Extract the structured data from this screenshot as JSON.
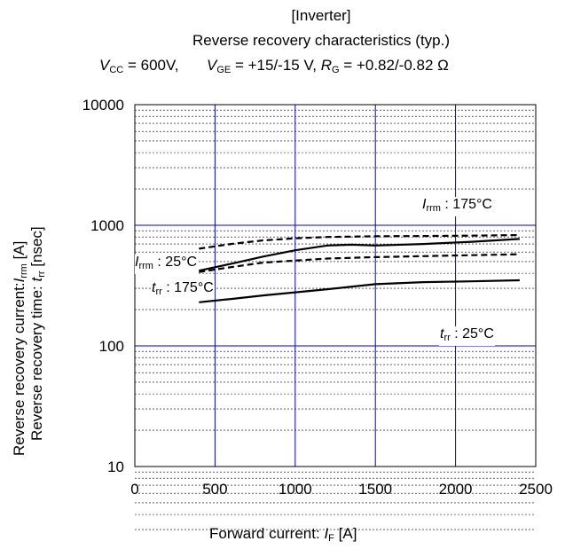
{
  "header": {
    "line1": "[Inverter]",
    "line2": "Reverse recovery characteristics  (typ.)",
    "vcc_sym": "V",
    "vcc_sub": "CC",
    "vcc_val": "= 600V,",
    "vge_sym": "V",
    "vge_sub": "GE",
    "vge_val": "= +15/-15 V,",
    "rg_sym": "R",
    "rg_sub": "G",
    "rg_val": "= +0.82/-0.82 Ω"
  },
  "chart_data": {
    "type": "line",
    "xlabel": {
      "prefix": "Forward current: ",
      "sym": "I",
      "sub": "F",
      "unit": " [A]"
    },
    "ylabel_line1": {
      "prefix": "Reverse recovery current:",
      "sym": "I",
      "sub": "rrm",
      "unit": " [A]"
    },
    "ylabel_line2": {
      "prefix": "Reverse recovery time: ",
      "sym": "t",
      "sub": "rr",
      "unit": "  [nsec]"
    },
    "xlim": [
      0,
      2500
    ],
    "ylim": [
      10,
      10000
    ],
    "y_scale": "log",
    "grid": true,
    "x_ticks": [
      {
        "value": 0,
        "label": "0"
      },
      {
        "value": 500,
        "label": "500"
      },
      {
        "value": 1000,
        "label": "1000"
      },
      {
        "value": 1500,
        "label": "1500"
      },
      {
        "value": 2000,
        "label": "2000"
      },
      {
        "value": 2500,
        "label": "2500"
      }
    ],
    "y_ticks": [
      {
        "value": 10,
        "label": "10"
      },
      {
        "value": 100,
        "label": "100"
      },
      {
        "value": 1000,
        "label": "1000"
      },
      {
        "value": 10000,
        "label": "10000"
      }
    ],
    "series": [
      {
        "key": "irrm-175",
        "style": "dashed",
        "x": [
          400,
          600,
          800,
          1000,
          1200,
          1500,
          1800,
          2100,
          2400
        ],
        "y": [
          640,
          700,
          750,
          780,
          800,
          810,
          815,
          820,
          830
        ]
      },
      {
        "key": "irrm-25",
        "style": "solid",
        "x": [
          400,
          600,
          800,
          1000,
          1200,
          1350,
          1500,
          1800,
          2100,
          2400
        ],
        "y": [
          420,
          480,
          550,
          620,
          680,
          690,
          680,
          700,
          730,
          770
        ]
      },
      {
        "key": "trr-175",
        "style": "dashed",
        "x": [
          400,
          600,
          800,
          1000,
          1200,
          1500,
          1800,
          2100,
          2400
        ],
        "y": [
          410,
          450,
          490,
          510,
          530,
          545,
          555,
          565,
          575
        ]
      },
      {
        "key": "trr-25",
        "style": "solid",
        "x": [
          400,
          600,
          800,
          1000,
          1200,
          1500,
          1800,
          2100,
          2400
        ],
        "y": [
          230,
          245,
          262,
          278,
          295,
          325,
          338,
          343,
          350
        ]
      }
    ],
    "annotations": [
      {
        "key": "a1",
        "sym": "I",
        "sub": "rrm",
        "text": " : 175°C"
      },
      {
        "key": "a2",
        "sym": "I",
        "sub": "rrm",
        "text": " : 25°C"
      },
      {
        "key": "a3",
        "sym": "t",
        "sub": "rr",
        "text": " : 175°C"
      },
      {
        "key": "a4",
        "sym": "t",
        "sub": "rr",
        "text": " : 25°C"
      }
    ]
  }
}
